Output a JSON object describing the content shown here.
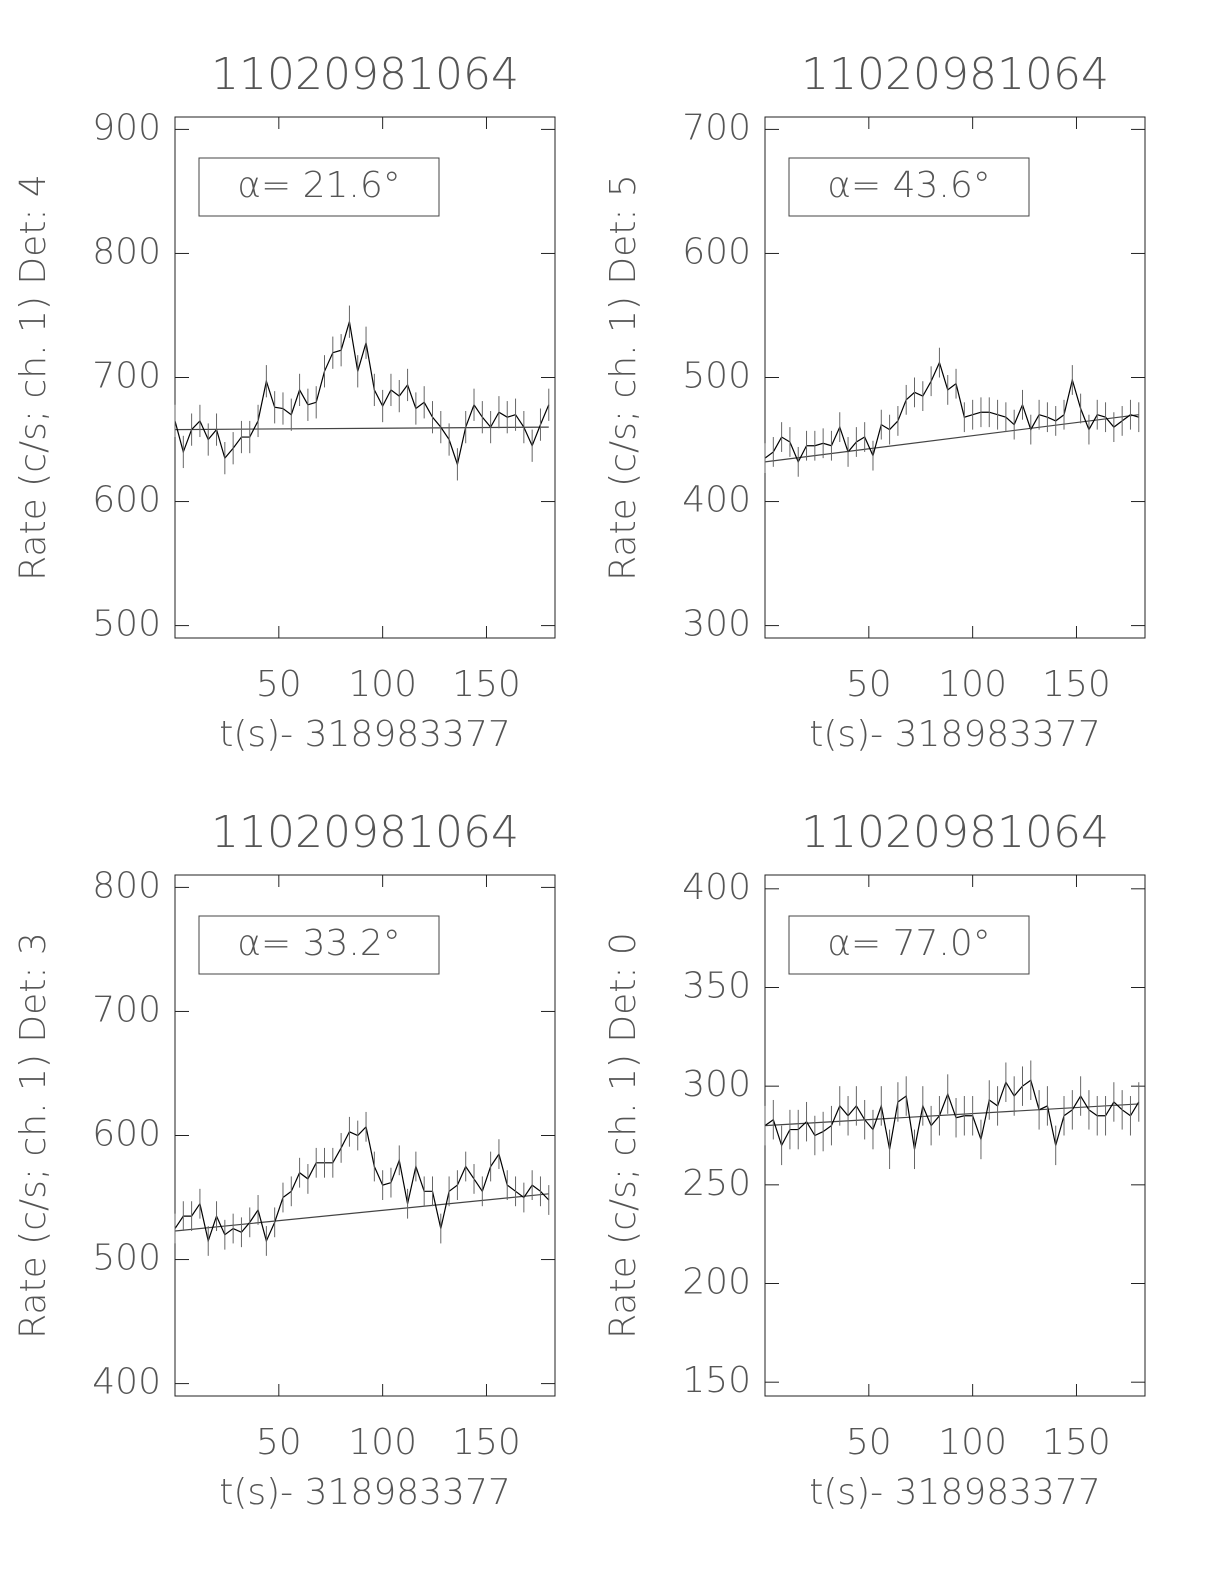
{
  "chart_data": [
    {
      "type": "line",
      "title": "11020981064",
      "xlabel": "t(s)- 318983377",
      "ylabel": "Rate (c/s; ch. 1) Det: 4",
      "annotation": "α= 21.6°",
      "xlim": [
        0,
        183
      ],
      "xticks": [
        50,
        100,
        150
      ],
      "ylim": [
        490,
        910
      ],
      "yticks": [
        500,
        600,
        700,
        800,
        900
      ],
      "x": [
        0,
        4,
        8,
        12,
        16,
        20,
        24,
        28,
        32,
        36,
        40,
        44,
        48,
        52,
        56,
        60,
        64,
        68,
        72,
        76,
        80,
        84,
        88,
        92,
        96,
        100,
        104,
        108,
        112,
        116,
        120,
        124,
        128,
        132,
        136,
        140,
        144,
        148,
        152,
        156,
        160,
        164,
        168,
        172,
        176,
        180
      ],
      "series": [
        {
          "color": "#000000",
          "error": 13,
          "values": [
            665,
            640,
            658,
            665,
            650,
            658,
            635,
            643,
            652,
            652,
            665,
            697,
            676,
            675,
            670,
            690,
            678,
            680,
            705,
            720,
            722,
            745,
            705,
            728,
            690,
            677,
            690,
            685,
            694,
            675,
            680,
            668,
            660,
            650,
            630,
            660,
            678,
            668,
            660,
            672,
            668,
            670,
            660,
            645,
            662,
            678
          ]
        }
      ],
      "fit": {
        "color": "#444444",
        "x": [
          0,
          180
        ],
        "values": [
          658,
          660
        ]
      }
    },
    {
      "type": "line",
      "title": "11020981064",
      "xlabel": "t(s)- 318983377",
      "ylabel": "Rate (c/s; ch. 1) Det: 5",
      "annotation": "α= 43.6°",
      "xlim": [
        0,
        183
      ],
      "xticks": [
        50,
        100,
        150
      ],
      "ylim": [
        290,
        710
      ],
      "yticks": [
        300,
        400,
        500,
        600,
        700
      ],
      "x": [
        0,
        4,
        8,
        12,
        16,
        20,
        24,
        28,
        32,
        36,
        40,
        44,
        48,
        52,
        56,
        60,
        64,
        68,
        72,
        76,
        80,
        84,
        88,
        92,
        96,
        100,
        104,
        108,
        112,
        116,
        120,
        124,
        128,
        132,
        136,
        140,
        144,
        148,
        152,
        156,
        160,
        164,
        168,
        172,
        176,
        180
      ],
      "series": [
        {
          "color": "#000000",
          "error": 12,
          "values": [
            435,
            440,
            452,
            448,
            432,
            445,
            445,
            447,
            445,
            460,
            440,
            448,
            452,
            437,
            462,
            458,
            465,
            482,
            488,
            485,
            497,
            512,
            490,
            495,
            468,
            470,
            472,
            472,
            470,
            468,
            462,
            478,
            458,
            470,
            468,
            465,
            470,
            498,
            475,
            458,
            470,
            468,
            460,
            465,
            470,
            468
          ]
        }
      ],
      "fit": {
        "color": "#444444",
        "x": [
          0,
          180
        ],
        "values": [
          432,
          470
        ]
      }
    },
    {
      "type": "line",
      "title": "11020981064",
      "xlabel": "t(s)- 318983377",
      "ylabel": "Rate (c/s; ch. 1) Det: 3",
      "annotation": "α= 33.2°",
      "xlim": [
        0,
        183
      ],
      "xticks": [
        50,
        100,
        150
      ],
      "ylim": [
        390,
        810
      ],
      "yticks": [
        400,
        500,
        600,
        700,
        800
      ],
      "x": [
        0,
        4,
        8,
        12,
        16,
        20,
        24,
        28,
        32,
        36,
        40,
        44,
        48,
        52,
        56,
        60,
        64,
        68,
        72,
        76,
        80,
        84,
        88,
        92,
        96,
        100,
        104,
        108,
        112,
        116,
        120,
        124,
        128,
        132,
        136,
        140,
        144,
        148,
        152,
        156,
        160,
        164,
        168,
        172,
        176,
        180
      ],
      "series": [
        {
          "color": "#000000",
          "error": 12,
          "values": [
            525,
            535,
            535,
            545,
            515,
            535,
            520,
            525,
            522,
            530,
            540,
            515,
            530,
            550,
            555,
            570,
            565,
            578,
            578,
            578,
            590,
            603,
            600,
            607,
            575,
            560,
            562,
            580,
            545,
            575,
            555,
            555,
            525,
            555,
            560,
            575,
            565,
            555,
            575,
            585,
            560,
            555,
            550,
            560,
            555,
            548
          ]
        }
      ],
      "fit": {
        "color": "#444444",
        "x": [
          0,
          180
        ],
        "values": [
          523,
          553
        ]
      }
    },
    {
      "type": "line",
      "title": "11020981064",
      "xlabel": "t(s)- 318983377",
      "ylabel": "Rate (c/s; ch. 1) Det: 0",
      "annotation": "α= 77.0°",
      "xlim": [
        0,
        183
      ],
      "xticks": [
        50,
        100,
        150
      ],
      "ylim": [
        143,
        407
      ],
      "yticks": [
        150,
        200,
        250,
        300,
        350,
        400
      ],
      "x": [
        0,
        4,
        8,
        12,
        16,
        20,
        24,
        28,
        32,
        36,
        40,
        44,
        48,
        52,
        56,
        60,
        64,
        68,
        72,
        76,
        80,
        84,
        88,
        92,
        96,
        100,
        104,
        108,
        112,
        116,
        120,
        124,
        128,
        132,
        136,
        140,
        144,
        148,
        152,
        156,
        160,
        164,
        168,
        172,
        176,
        180
      ],
      "series": [
        {
          "color": "#000000",
          "error": 10,
          "values": [
            280,
            283,
            270,
            278,
            278,
            282,
            275,
            277,
            280,
            290,
            285,
            290,
            283,
            278,
            290,
            268,
            292,
            295,
            268,
            290,
            280,
            285,
            296,
            284,
            285,
            285,
            273,
            293,
            290,
            302,
            295,
            300,
            303,
            288,
            290,
            270,
            285,
            288,
            295,
            288,
            285,
            285,
            292,
            288,
            285,
            292
          ]
        }
      ],
      "fit": {
        "color": "#444444",
        "x": [
          0,
          180
        ],
        "values": [
          280,
          291
        ]
      }
    }
  ]
}
